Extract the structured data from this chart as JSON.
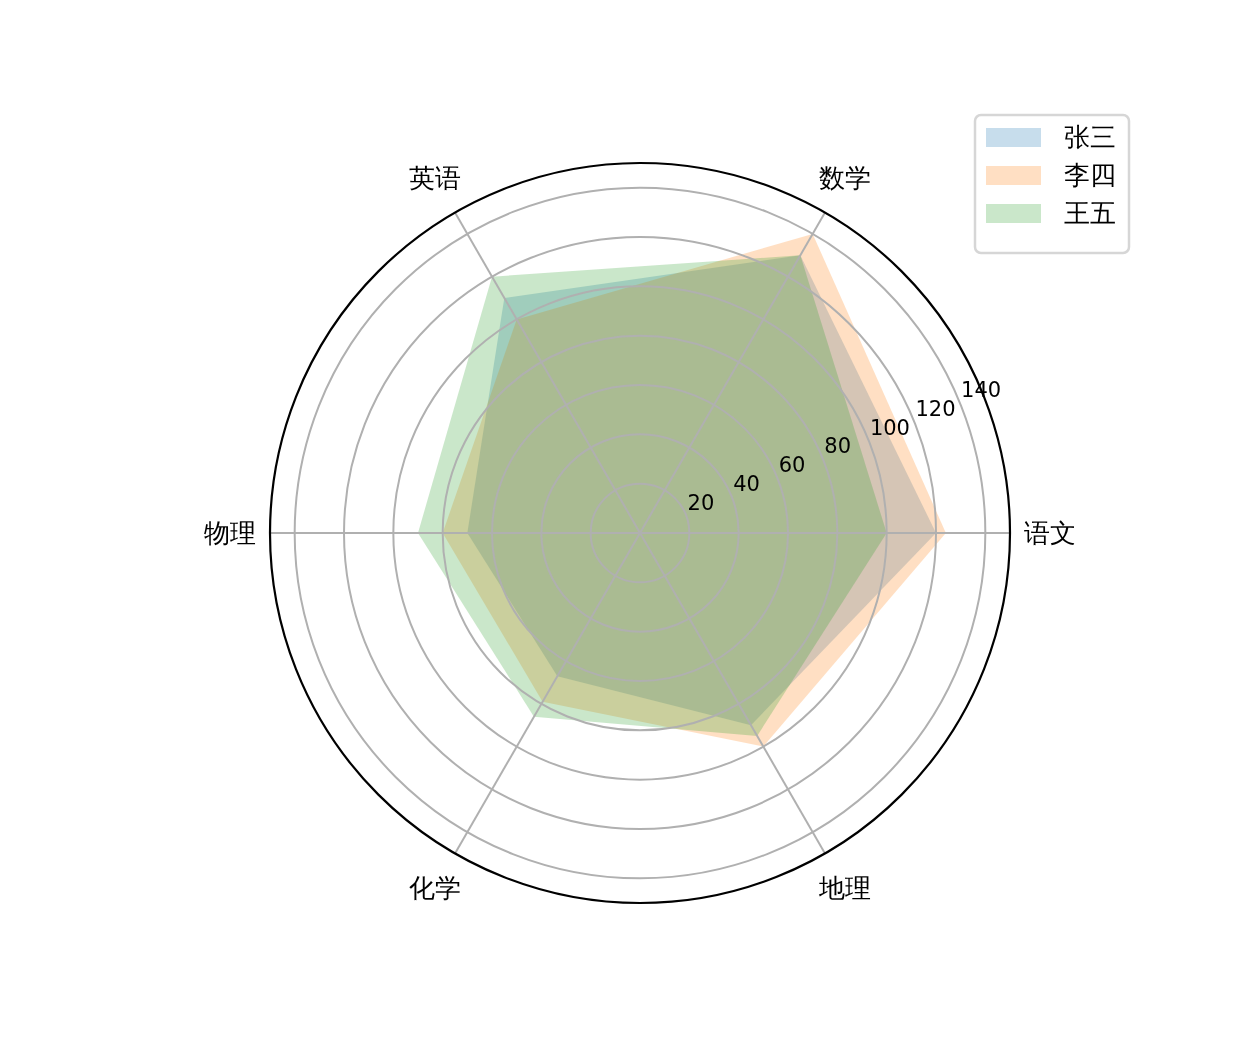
{
  "chart_data": {
    "type": "radar",
    "categories": [
      "数学",
      "语文",
      "地理",
      "化学",
      "物理",
      "英语"
    ],
    "series": [
      {
        "name": "张三",
        "color": "#c7ddec",
        "values": [
          130,
          120,
          90,
          67,
          70,
          110
        ]
      },
      {
        "name": "李四",
        "color": "#ffdfc3",
        "values": [
          140,
          124,
          100,
          79,
          80,
          100
        ]
      },
      {
        "name": "王五",
        "color": "#cae7ca",
        "values": [
          130,
          100,
          95,
          86,
          90,
          120
        ]
      }
    ],
    "ylim": [
      0,
      150
    ],
    "yticks": [
      20,
      40,
      60,
      80,
      100,
      120,
      140
    ],
    "grid": true,
    "legend": "top right"
  }
}
